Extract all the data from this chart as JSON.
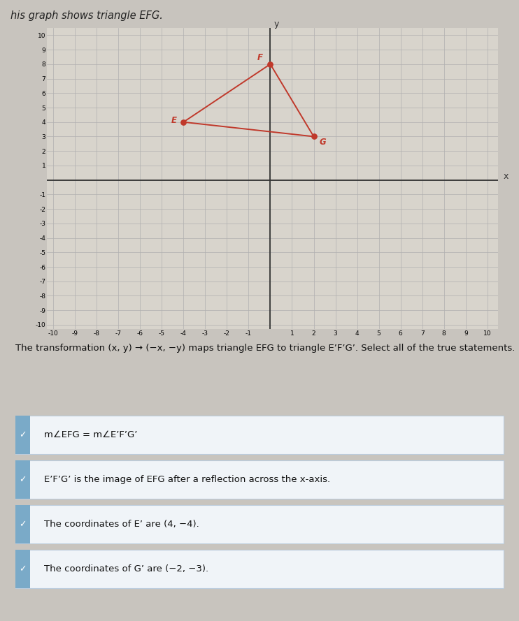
{
  "top_label": "his graph shows triangle EFG.",
  "xlim": [
    -10,
    10
  ],
  "ylim": [
    -10,
    10
  ],
  "triangle_E": [
    -4,
    4
  ],
  "triangle_F": [
    0,
    8
  ],
  "triangle_G": [
    2,
    3
  ],
  "triangle_color": "#c0392b",
  "triangle_linewidth": 1.4,
  "point_size": 28,
  "grid_color": "#b0b0b0",
  "grid_linewidth": 0.5,
  "axis_color": "#333333",
  "bg_color": "#c8c4be",
  "plot_bg_color": "#d8d4cc",
  "statement_border_color": "#7aaac8",
  "statement_bg_color": "#e8eef3",
  "statement_check_color": "#5588aa",
  "intro_text": "The transformation (x, y) → (−x, −y) maps triangle EFG to triangle E’F’G’. Select all of the true statements.",
  "statements": [
    {
      "text": "m∠EFG = m∠E’F’G’",
      "selected": true
    },
    {
      "text": "E’F’G’ is the image of EFG after a reflection across the x-axis.",
      "selected": true
    },
    {
      "text": "The coordinates of E’ are (4, −4).",
      "selected": true
    },
    {
      "text": "The coordinates of G’ are (−2, −3).",
      "selected": true
    }
  ],
  "figure_width": 7.42,
  "figure_height": 8.89
}
